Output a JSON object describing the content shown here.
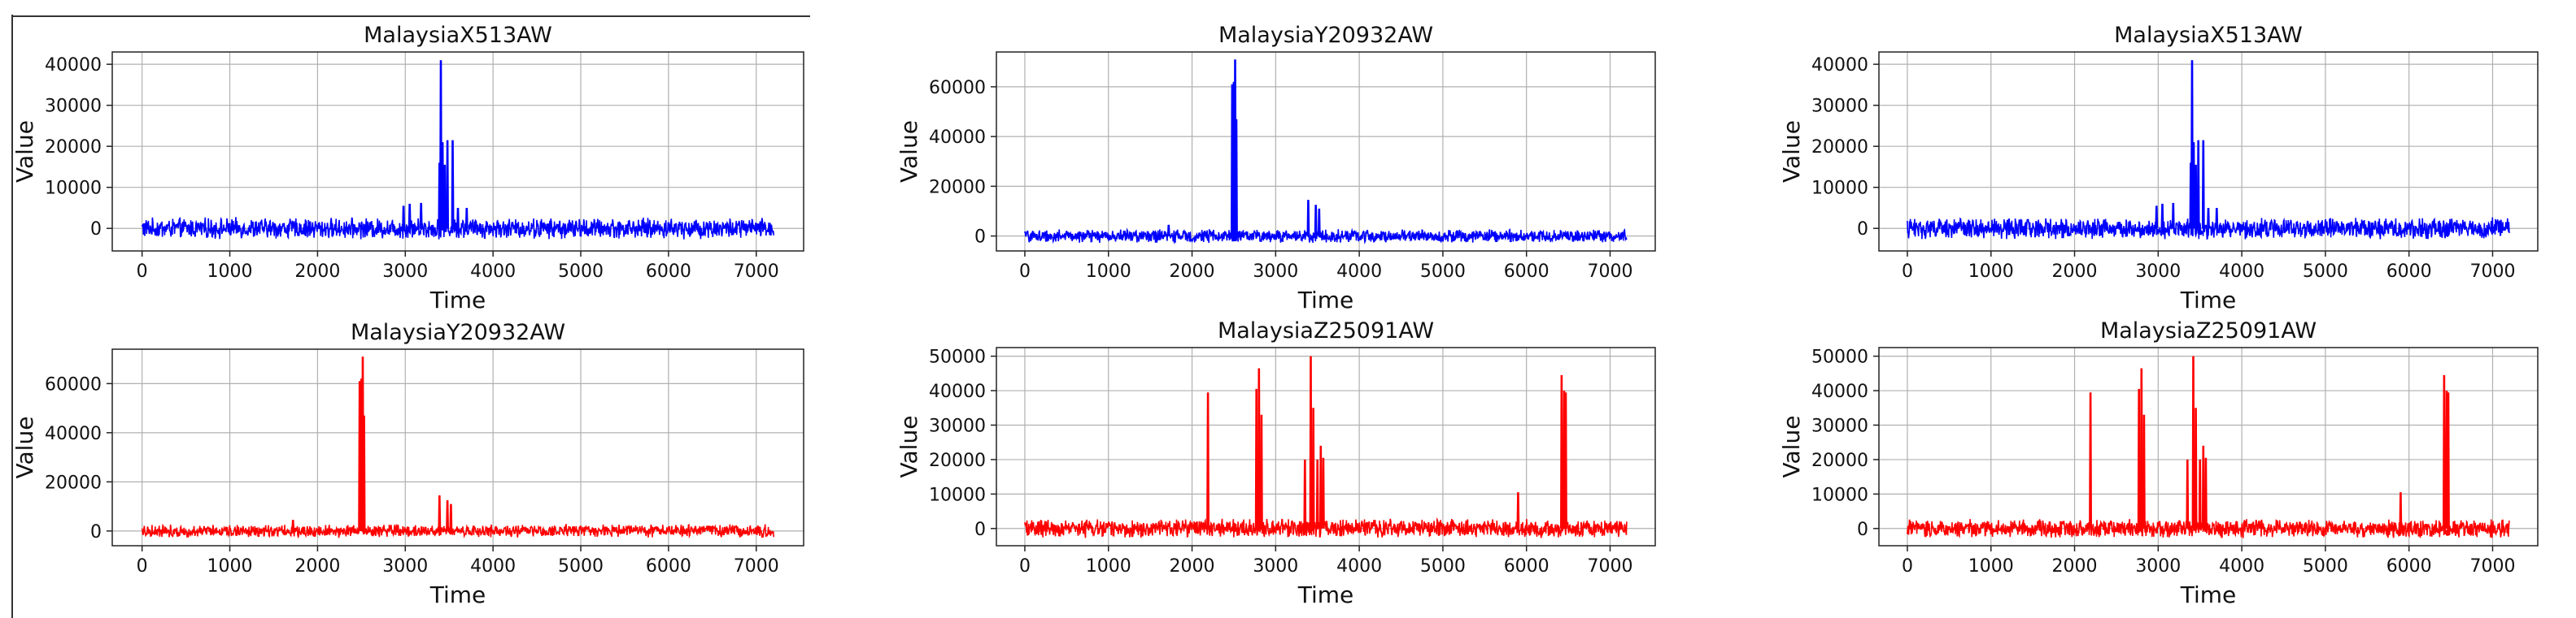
{
  "colors": {
    "blue": "#0000ff",
    "red": "#ff0000",
    "grid": "#b0b0b0"
  },
  "chart_data": [
    {
      "type": "line",
      "title": "MalaysiaX513AW",
      "xlabel": "Time",
      "ylabel": "Value",
      "xlim": [
        -340,
        7540
      ],
      "ylim": [
        -5500,
        43000
      ],
      "xticks": [
        0,
        1000,
        2000,
        3000,
        4000,
        5000,
        6000,
        7000
      ],
      "xtick_labels": [
        "0",
        "1000",
        "2000",
        "3000",
        "4000",
        "5000",
        "6000",
        "7000"
      ],
      "yticks": [
        0,
        10000,
        20000,
        30000,
        40000
      ],
      "ytick_labels": [
        "0",
        "10000",
        "20000",
        "30000",
        "40000"
      ],
      "grid": true,
      "color": "blue",
      "series": [
        {
          "noise_amplitude": 2500,
          "peaks": [
            {
              "x": 2980,
              "y": 5500
            },
            {
              "x": 3050,
              "y": 6000
            },
            {
              "x": 3180,
              "y": 6200
            },
            {
              "x": 3390,
              "y": 16000
            },
            {
              "x": 3405,
              "y": 41000
            },
            {
              "x": 3425,
              "y": 21000
            },
            {
              "x": 3450,
              "y": 15500
            },
            {
              "x": 3480,
              "y": 21500
            },
            {
              "x": 3540,
              "y": 21500
            },
            {
              "x": 3600,
              "y": 5000
            },
            {
              "x": 3700,
              "y": 5000
            }
          ]
        }
      ]
    },
    {
      "type": "line",
      "title": "MalaysiaY20932AW",
      "xlabel": "Time",
      "ylabel": "Value",
      "xlim": [
        -340,
        7540
      ],
      "ylim": [
        -6000,
        74000
      ],
      "xticks": [
        0,
        1000,
        2000,
        3000,
        4000,
        5000,
        6000,
        7000
      ],
      "xtick_labels": [
        "0",
        "1000",
        "2000",
        "3000",
        "4000",
        "5000",
        "6000",
        "7000"
      ],
      "yticks": [
        0,
        20000,
        40000,
        60000
      ],
      "ytick_labels": [
        "0",
        "20000",
        "40000",
        "60000"
      ],
      "grid": true,
      "color": "blue",
      "series": [
        {
          "noise_amplitude": 2600,
          "peaks": [
            {
              "x": 1720,
              "y": 4500
            },
            {
              "x": 2480,
              "y": 61000
            },
            {
              "x": 2500,
              "y": 62000
            },
            {
              "x": 2515,
              "y": 71000
            },
            {
              "x": 2530,
              "y": 47000
            },
            {
              "x": 3390,
              "y": 14500
            },
            {
              "x": 3480,
              "y": 12500
            },
            {
              "x": 3520,
              "y": 11000
            }
          ]
        }
      ]
    },
    {
      "type": "line",
      "title": "MalaysiaX513AW",
      "xlabel": "Time",
      "ylabel": "Value",
      "xlim": [
        -340,
        7540
      ],
      "ylim": [
        -5500,
        43000
      ],
      "xticks": [
        0,
        1000,
        2000,
        3000,
        4000,
        5000,
        6000,
        7000
      ],
      "xtick_labels": [
        "0",
        "1000",
        "2000",
        "3000",
        "4000",
        "5000",
        "6000",
        "7000"
      ],
      "yticks": [
        0,
        10000,
        20000,
        30000,
        40000
      ],
      "ytick_labels": [
        "0",
        "10000",
        "20000",
        "30000",
        "40000"
      ],
      "grid": true,
      "color": "blue",
      "series": [
        {
          "noise_amplitude": 2500,
          "peaks": [
            {
              "x": 2980,
              "y": 5500
            },
            {
              "x": 3050,
              "y": 6000
            },
            {
              "x": 3180,
              "y": 6200
            },
            {
              "x": 3390,
              "y": 16000
            },
            {
              "x": 3405,
              "y": 41000
            },
            {
              "x": 3425,
              "y": 21000
            },
            {
              "x": 3450,
              "y": 15500
            },
            {
              "x": 3480,
              "y": 21500
            },
            {
              "x": 3540,
              "y": 21500
            },
            {
              "x": 3600,
              "y": 5000
            },
            {
              "x": 3700,
              "y": 5000
            }
          ]
        }
      ]
    },
    {
      "type": "line",
      "title": "MalaysiaY20932AW",
      "xlabel": "Time",
      "ylabel": "Value",
      "xlim": [
        -340,
        7540
      ],
      "ylim": [
        -6000,
        74000
      ],
      "xticks": [
        0,
        1000,
        2000,
        3000,
        4000,
        5000,
        6000,
        7000
      ],
      "xtick_labels": [
        "0",
        "1000",
        "2000",
        "3000",
        "4000",
        "5000",
        "6000",
        "7000"
      ],
      "yticks": [
        0,
        20000,
        40000,
        60000
      ],
      "ytick_labels": [
        "0",
        "20000",
        "40000",
        "60000"
      ],
      "grid": true,
      "color": "red",
      "series": [
        {
          "noise_amplitude": 2600,
          "peaks": [
            {
              "x": 1720,
              "y": 4500
            },
            {
              "x": 2480,
              "y": 61000
            },
            {
              "x": 2500,
              "y": 62000
            },
            {
              "x": 2515,
              "y": 71000
            },
            {
              "x": 2530,
              "y": 47000
            },
            {
              "x": 3390,
              "y": 14500
            },
            {
              "x": 3480,
              "y": 12500
            },
            {
              "x": 3520,
              "y": 11000
            }
          ]
        }
      ]
    },
    {
      "type": "line",
      "title": "MalaysiaZ25091AW",
      "xlabel": "Time",
      "ylabel": "Value",
      "xlim": [
        -340,
        7540
      ],
      "ylim": [
        -5000,
        52500
      ],
      "xticks": [
        0,
        1000,
        2000,
        3000,
        4000,
        5000,
        6000,
        7000
      ],
      "xtick_labels": [
        "0",
        "1000",
        "2000",
        "3000",
        "4000",
        "5000",
        "6000",
        "7000"
      ],
      "yticks": [
        0,
        10000,
        20000,
        30000,
        40000,
        50000
      ],
      "ytick_labels": [
        "0",
        "10000",
        "20000",
        "30000",
        "40000",
        "50000"
      ],
      "grid": true,
      "color": "red",
      "series": [
        {
          "noise_amplitude": 2600,
          "peaks": [
            {
              "x": 2190,
              "y": 39500
            },
            {
              "x": 2770,
              "y": 40500
            },
            {
              "x": 2800,
              "y": 46500
            },
            {
              "x": 2830,
              "y": 33000
            },
            {
              "x": 3350,
              "y": 20000
            },
            {
              "x": 3420,
              "y": 50000
            },
            {
              "x": 3450,
              "y": 35000
            },
            {
              "x": 3500,
              "y": 20000
            },
            {
              "x": 3540,
              "y": 24000
            },
            {
              "x": 3570,
              "y": 20500
            },
            {
              "x": 5900,
              "y": 10500
            },
            {
              "x": 6420,
              "y": 44500
            },
            {
              "x": 6450,
              "y": 40000
            },
            {
              "x": 6470,
              "y": 39500
            }
          ]
        }
      ]
    },
    {
      "type": "line",
      "title": "MalaysiaZ25091AW",
      "xlabel": "Time",
      "ylabel": "Value",
      "xlim": [
        -340,
        7540
      ],
      "ylim": [
        -5000,
        52500
      ],
      "xticks": [
        0,
        1000,
        2000,
        3000,
        4000,
        5000,
        6000,
        7000
      ],
      "xtick_labels": [
        "0",
        "1000",
        "2000",
        "3000",
        "4000",
        "5000",
        "6000",
        "7000"
      ],
      "yticks": [
        0,
        10000,
        20000,
        30000,
        40000,
        50000
      ],
      "ytick_labels": [
        "0",
        "10000",
        "20000",
        "30000",
        "40000",
        "50000"
      ],
      "grid": true,
      "color": "red",
      "series": [
        {
          "noise_amplitude": 2600,
          "peaks": [
            {
              "x": 2190,
              "y": 39500
            },
            {
              "x": 2770,
              "y": 40500
            },
            {
              "x": 2800,
              "y": 46500
            },
            {
              "x": 2830,
              "y": 33000
            },
            {
              "x": 3350,
              "y": 20000
            },
            {
              "x": 3420,
              "y": 50000
            },
            {
              "x": 3450,
              "y": 35000
            },
            {
              "x": 3500,
              "y": 20000
            },
            {
              "x": 3540,
              "y": 24000
            },
            {
              "x": 3570,
              "y": 20500
            },
            {
              "x": 5900,
              "y": 10500
            },
            {
              "x": 6420,
              "y": 44500
            },
            {
              "x": 6450,
              "y": 40000
            },
            {
              "x": 6470,
              "y": 39500
            }
          ]
        }
      ]
    }
  ]
}
